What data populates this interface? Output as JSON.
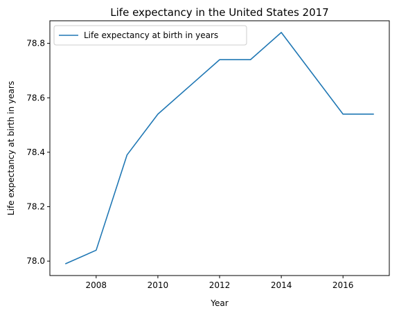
{
  "chart_data": {
    "type": "line",
    "title": "Life expectancy in the United States 2017",
    "xlabel": "Year",
    "ylabel": "Life expectancy at birth in years",
    "xlim": [
      2006.5,
      2017.5
    ],
    "ylim": [
      77.947,
      78.883
    ],
    "xticks": [
      2008,
      2010,
      2012,
      2014,
      2016
    ],
    "yticks": [
      78.0,
      78.2,
      78.4,
      78.6,
      78.8
    ],
    "x": [
      2007,
      2008,
      2009,
      2010,
      2011,
      2012,
      2013,
      2014,
      2015,
      2016,
      2017
    ],
    "series": [
      {
        "name": "Life expectancy at birth in years",
        "color": "#1f77b4",
        "values": [
          77.99,
          78.04,
          78.39,
          78.54,
          78.64,
          78.74,
          78.74,
          78.84,
          78.69,
          78.54,
          78.54
        ]
      }
    ],
    "grid": false,
    "legend": "top-left"
  }
}
